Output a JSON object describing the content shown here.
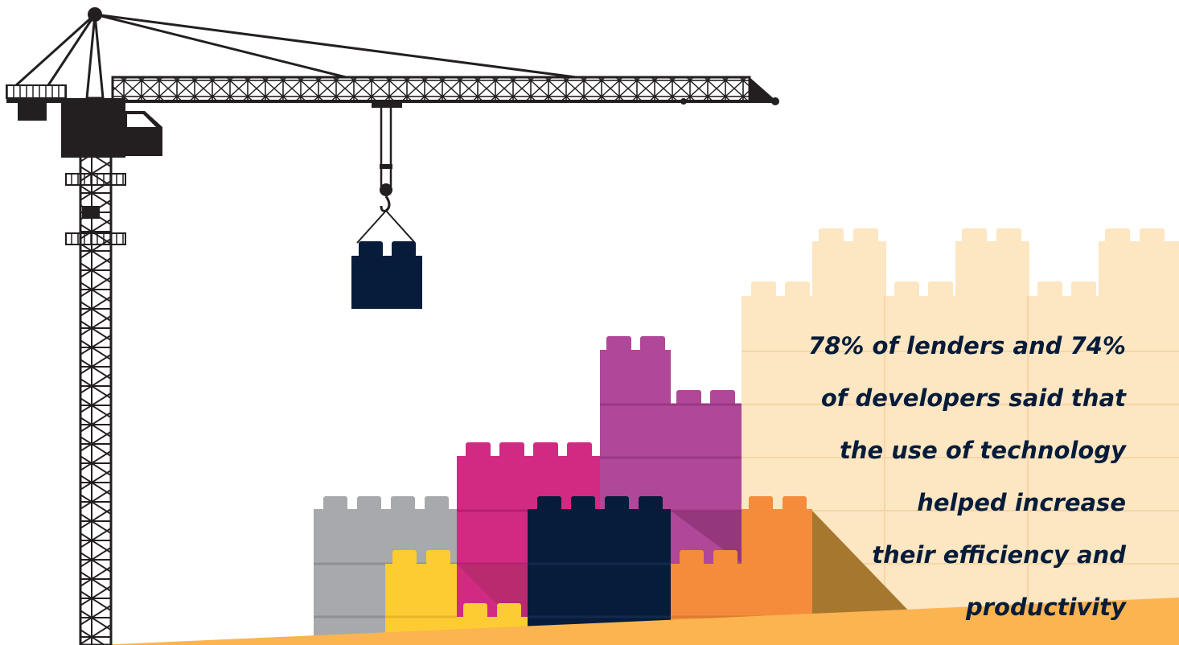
{
  "statistic": {
    "lines": [
      "78% of lenders and 74%",
      "of developers said that",
      "the use of technology",
      "helped increase",
      "their efficiency and",
      "productivity"
    ]
  },
  "colors": {
    "crane": "#231f20",
    "background_blocks": "#fde6c2",
    "gray_block": "#a7a9ac",
    "yellow_block": "#fdcc32",
    "pink_block": "#d12a82",
    "purple_block": "#b04798",
    "navy_block": "#061c3a",
    "orange_block": "#f48c3c",
    "ground": "#fbb450",
    "shadow": "#a6772f"
  },
  "icons": [
    "tower-crane-icon",
    "hanging-brick-icon"
  ]
}
